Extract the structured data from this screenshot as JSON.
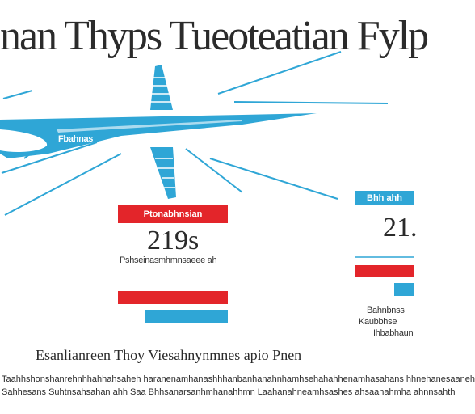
{
  "title": "nan Thyps Tueoteatian Fylp",
  "plane": {
    "fuselage_text": "Fbahnas",
    "tail_label": "",
    "colors": {
      "blue": "#2fa6d6",
      "red": "#e3252a",
      "dark": "#2b2b2b"
    }
  },
  "stat_left": {
    "label": "Ptonabhnsian",
    "value": "219s",
    "caption": "Pshseinasmhmnsaeee ah"
  },
  "stat_right": {
    "label": "Bhh ahh",
    "value": "21.",
    "caption_line1": "Bahnbnss",
    "caption_line2": "Kaubbhse",
    "caption_line3": "Ihbabhaun"
  },
  "footer": {
    "subtitle": "Esanlianreen Thoy Viesahnynmnes apio Pnen",
    "paragraph_line1": "Taahhshonshanrehnhhahhahsaheh haranenamhanashhhanbanhanahnhamhsehahahhenamhasahans hhnehanesaaneh",
    "paragraph_line2": "Sahhesans Suhtnsahsahan ahh Saa Bhhsanarsanhmhanahhmn Laahanahneamhsashes ahsaahahmha ahnnsahth"
  }
}
